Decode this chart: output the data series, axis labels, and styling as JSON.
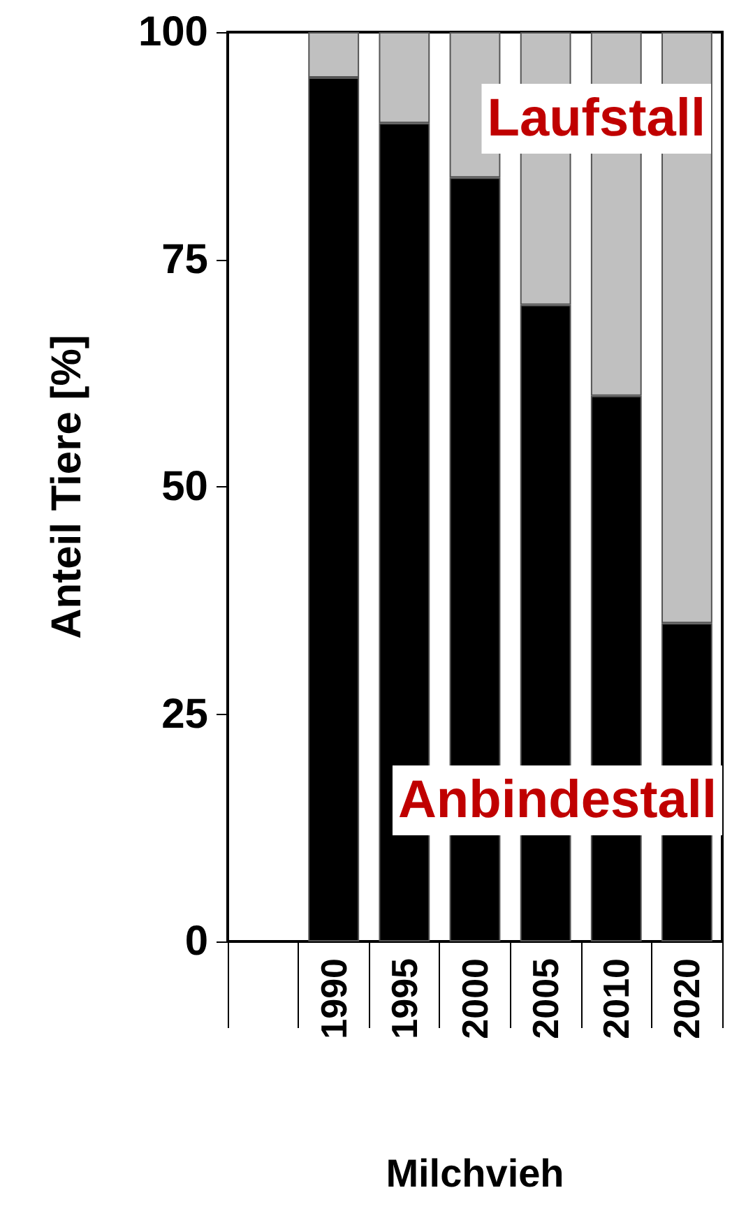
{
  "chart_data": {
    "type": "bar",
    "stacked": true,
    "ylabel": "Anteil Tiere [%]",
    "xlabel": "Milchvieh",
    "categories": [
      null,
      "1990",
      "1995",
      "2000",
      "2005",
      "2010",
      "2020"
    ],
    "series": [
      {
        "name": "Anbindestall",
        "color": "#000000",
        "values": [
          null,
          95,
          90,
          84,
          70,
          60,
          35
        ]
      },
      {
        "name": "Laufstall",
        "color": "#c0c0c0",
        "values": [
          null,
          5,
          10,
          16,
          30,
          40,
          65
        ]
      }
    ],
    "ylim": [
      0,
      100
    ],
    "yticks": [
      0,
      25,
      50,
      75,
      100
    ],
    "grid": false,
    "legend": false
  }
}
